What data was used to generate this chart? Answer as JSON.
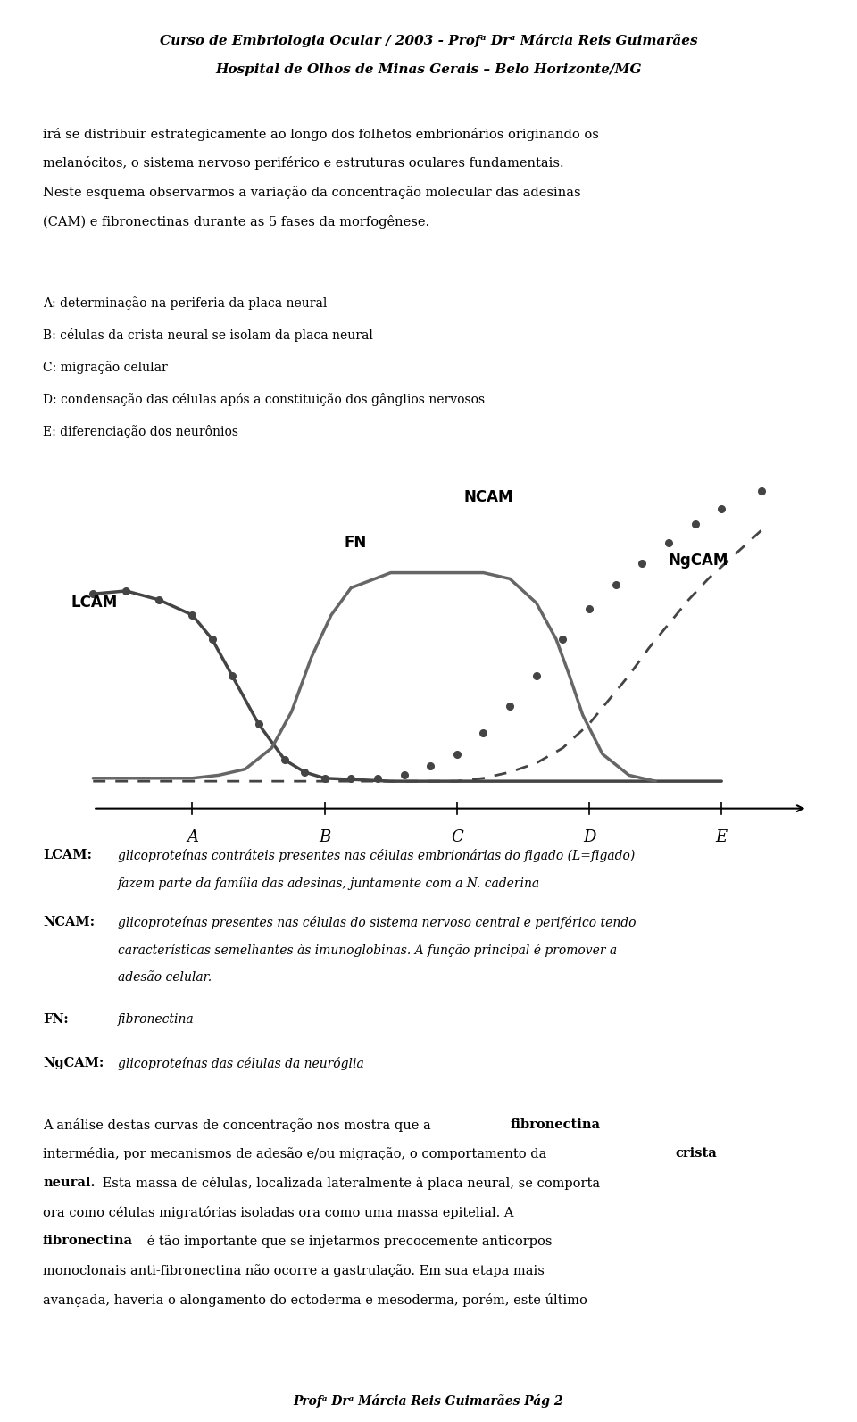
{
  "header_line1": "Curso de Embriologia Ocular / 2003 - Profᵃ Drᵃ Márcia Reis Guimarães",
  "header_line2": "Hospital de Olhos de Minas Gerais – Belo Horizonte/MG",
  "para1_lines": [
    "irá se distribuir estrategicamente ao longo dos folhetos embrionários originando os",
    "melanocítos, o sistema nervoso periférico e estruturas oculares fundamentais.",
    "Neste esquema observarmos a variação da concentração molecular das adesinas",
    "(CAM) e fibronectinas durante as 5 fases da morfogêneSE."
  ],
  "para1_lines_fixed": [
    "irá se distribuir estrategicamente ao longo dos folhetos embrionários originando os",
    "melanocítos, o sistema nervoso periférico e estruturas oculares fundamentais.",
    "Neste esquema observarmos a variação da concentração molecular das adesinas",
    "(CAM) e fibronectinas durante as 5 fases da morfogêneSE."
  ],
  "list_items": [
    "A: determinação na periferia da placa neural",
    "B: células da crista neural se isolam da placa neural",
    "C: migração celular",
    "D: condensação das células após a constituição dos gânglios nervosos",
    "E: diferenciação dos neurônios"
  ],
  "lcam_label": "LCAM",
  "ncam_label": "NCAM",
  "fn_label": "FN",
  "ngcam_label": "NgCAM",
  "x_ticks": [
    "A",
    "B",
    "C",
    "D",
    "E"
  ],
  "lcam_bold": "LCAM:",
  "lcam_text": "   glicoproteínas contráteis presentes nas células embrionárias do figado (L=figado)",
  "lcam_text2": "   fazem parte da família das adesinas, juntamente com a N. caderina",
  "ncam_bold": "NCAM:",
  "ncam_text": "   glicoproteínas presentes nas células do sistema nervoso central e periférico tendo",
  "ncam_text2": "   características semelhantes às imunoglobinas. A função principal é promover a",
  "ncam_text3": "   adesão celular.",
  "fn_bold": "FN:",
  "fn_text": "   fibronectina",
  "ngcam_bold": "NgCAM:",
  "ngcam_text": " glicoproteínas das células da neuróglia",
  "footer_line1_pre": "A análise destas curvas de concentração nos mostra que a ",
  "footer_line1_bold": "fibronectina",
  "footer_line2_pre": "intermédia, por mecanismos de adesão e/ou migração, o comportamento da ",
  "footer_line2_bold": "crista",
  "footer_line3_bold": "neural.",
  "footer_line3_post": " Esta massa de células, localizada lateralmente à placa neural, se comporta",
  "footer_line4": "ora como células migratórias isoladas ora como uma massa epitelial. A",
  "footer_line5_pre": "fibronectina",
  "footer_line5_post": " é tão importante que se injetarmos precocemente anticorpos",
  "footer_line6": "monoclonais anti-fibronectina não ocorre a gastrulação. Em sua etapa mais",
  "footer_line7": "avançada, haveria o alongamento do ectoderma e mesoderma, porém, este último",
  "footer_page": "Profᵃ Drᵃ Márcia Reis Guimarães Pág 2",
  "bg_color": "#ffffff",
  "text_color": "#000000",
  "curve_color": "#555555"
}
